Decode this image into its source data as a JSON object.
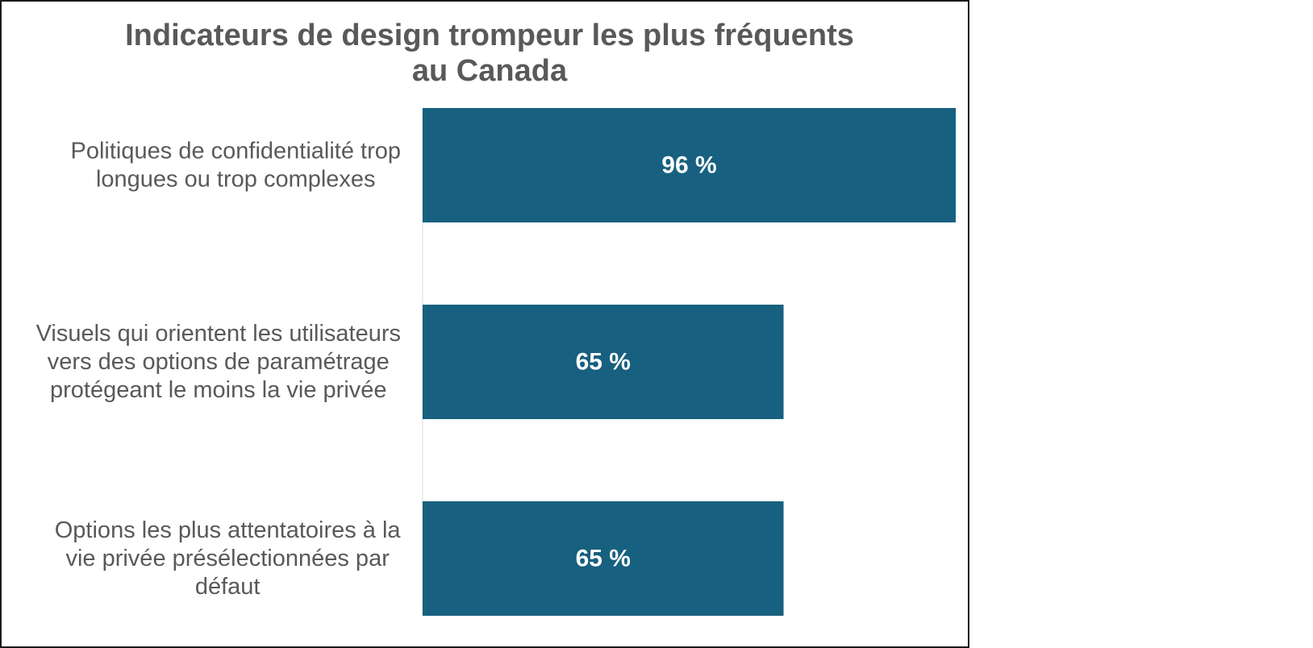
{
  "chart_data": {
    "type": "bar",
    "orientation": "horizontal",
    "title_lines": [
      "Indicateurs de design trompeur les plus fréquents",
      "au Canada"
    ],
    "categories": [
      [
        "Politiques de confidentialité trop",
        "longues ou trop complexes"
      ],
      [
        "Visuels qui orientent les utilisateurs",
        "vers des options de paramétrage",
        "protégeant le moins la vie privée"
      ],
      [
        "Options les plus attentatoires à la",
        "vie privée présélectionnées par",
        "défaut"
      ]
    ],
    "values": [
      96,
      65,
      65
    ],
    "data_labels": [
      "96 %",
      "65 %",
      "65 %"
    ],
    "xlim": [
      0,
      96
    ],
    "bar_color": "#17607f",
    "label_color": "#ffffff",
    "text_color": "#595959",
    "grid": false,
    "legend": "none"
  }
}
